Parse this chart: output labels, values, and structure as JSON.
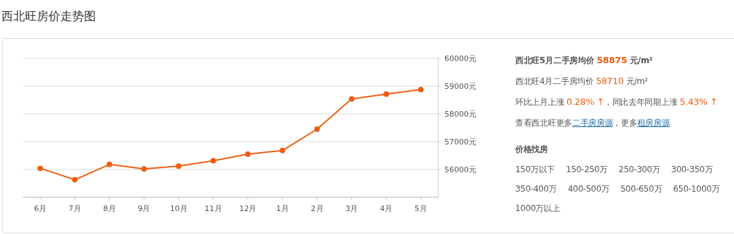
{
  "chart_data": [
    {
      "type": "line",
      "title": "西北旺房价走势图",
      "categories": [
        "6月",
        "7月",
        "8月",
        "9月",
        "10月",
        "11月",
        "12月",
        "1月",
        "2月",
        "3月",
        "4月",
        "5月"
      ],
      "series": [
        {
          "color": "#ee5d12",
          "values": [
            56040,
            55630,
            56180,
            56020,
            56120,
            56310,
            56550,
            56680,
            57450,
            58540,
            58710,
            58875
          ]
        }
      ],
      "ylim": [
        55000,
        60000
      ],
      "yticks": [
        {
          "value": 56000,
          "label": "56000元"
        },
        {
          "value": 57000,
          "label": "57000元"
        },
        {
          "value": 58000,
          "label": "58000元"
        },
        {
          "value": 59000,
          "label": "59000元"
        },
        {
          "value": 60000,
          "label": "60000元"
        }
      ],
      "grid": "y",
      "marker": "circle"
    },
    {
      "type": "other",
      "annotations": [
        "西北旺5月二手房均价 58875 元/m²",
        "西北旺4月二手房均价 58710 元/m²",
        "环比上月上涨 0.28% ↑，同比去年同期上涨 5.43% ↑",
        "查看西北旺更多",
        "二手房房源",
        "，更多",
        "租房房源",
        "价格找房",
        "150万以下",
        "150-250万",
        "250-300万",
        "300-350万",
        "350-400万",
        "400-500万",
        "500-650万",
        "650-1000万",
        "1000万以上"
      ]
    }
  ]
}
